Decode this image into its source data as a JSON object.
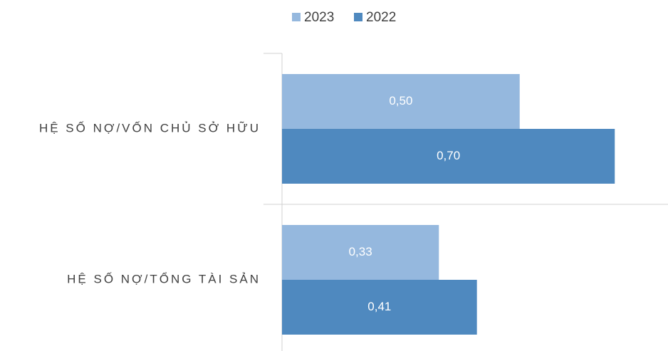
{
  "chart_data": {
    "type": "hbar",
    "categories": [
      "HỆ SỐ NỢ/VỐN CHỦ SỞ HỮU",
      "HỆ SỐ NỢ/TỔNG TÀI SẢN"
    ],
    "series": [
      {
        "name": "2023",
        "color": "#95b8de",
        "values": [
          0.5,
          0.33
        ],
        "value_labels": [
          "0,50",
          "0,33"
        ]
      },
      {
        "name": "2022",
        "color": "#4f89bf",
        "values": [
          0.7,
          0.41
        ],
        "value_labels": [
          "0,70",
          "0,41"
        ]
      }
    ],
    "xlim": [
      0,
      0.8
    ]
  }
}
